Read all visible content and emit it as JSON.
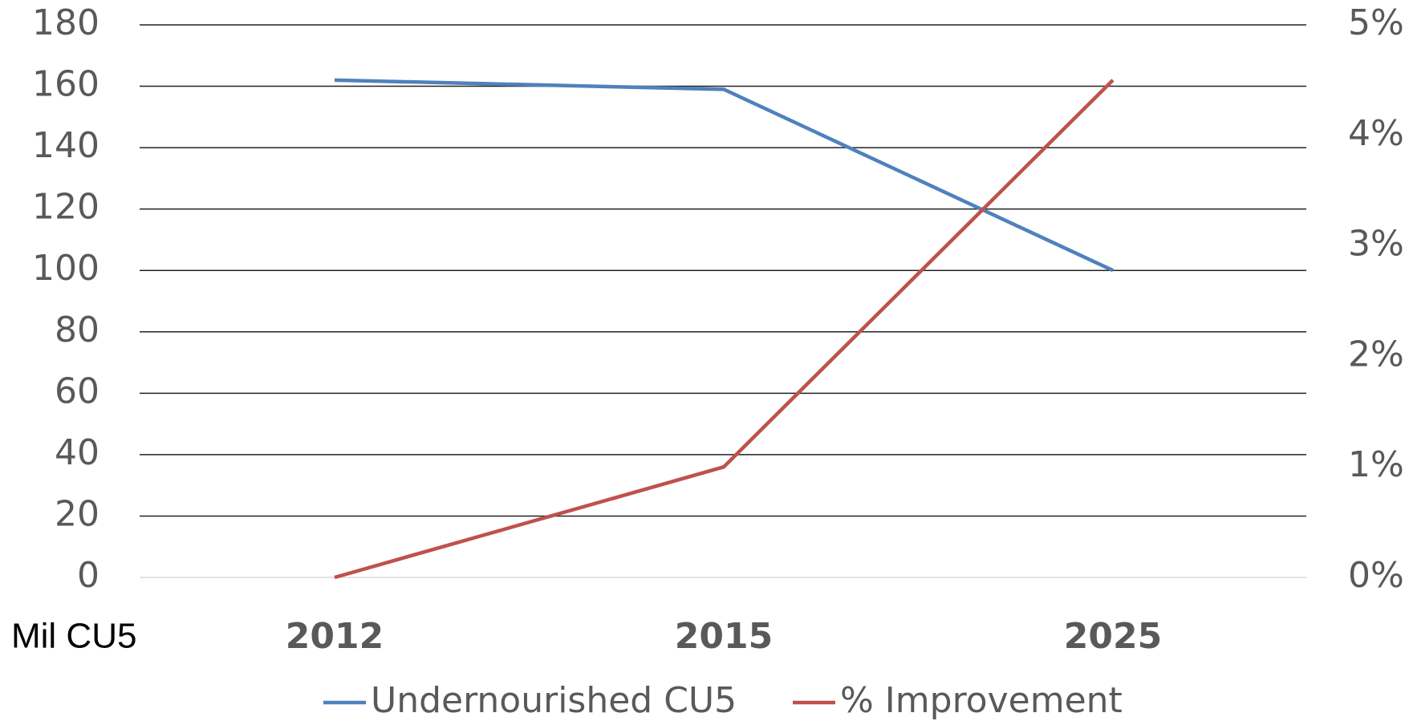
{
  "chart_data": {
    "type": "line",
    "y_axis_label": "Mil CU5",
    "categories": [
      "2012",
      "2015",
      "2025"
    ],
    "series": [
      {
        "name": "Undernourished CU5",
        "color": "#4f81bd",
        "values": [
          162,
          159,
          100
        ]
      },
      {
        "name": "% Improvement",
        "color": "#c0504d",
        "values": [
          0,
          1,
          4.5
        ],
        "axis": "y2"
      }
    ],
    "ylim": [
      0,
      180
    ],
    "yticks": [
      0,
      20,
      40,
      60,
      80,
      100,
      120,
      140,
      160,
      180
    ],
    "y2lim": [
      0,
      5
    ],
    "y2ticks": [
      {
        "value": 0,
        "label": "0%"
      },
      {
        "value": 1,
        "label": "1%"
      },
      {
        "value": 2,
        "label": "2%"
      },
      {
        "value": 3,
        "label": "3%"
      },
      {
        "value": 4,
        "label": "4%"
      },
      {
        "value": 5,
        "label": "5%"
      }
    ],
    "grid": true,
    "legend": "bottom"
  }
}
